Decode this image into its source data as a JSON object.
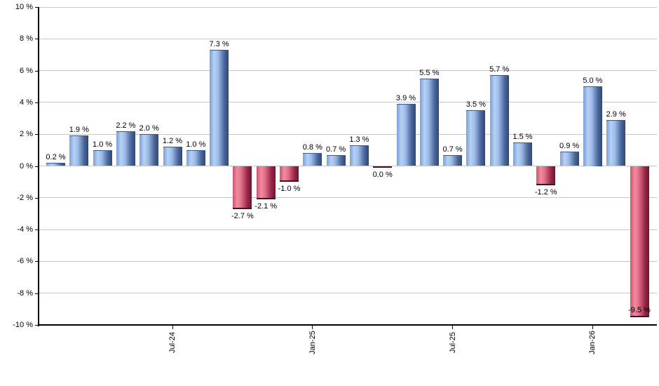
{
  "chart_data": {
    "type": "bar",
    "title": "",
    "ylabel": "",
    "xlabel": "",
    "ylim": [
      -10,
      10
    ],
    "y_tick_step": 2,
    "grid": true,
    "values": [
      0.2,
      1.9,
      1.0,
      2.2,
      2.0,
      1.2,
      1.0,
      7.3,
      -2.7,
      -2.1,
      -1.0,
      0.8,
      0.7,
      1.3,
      0.0,
      3.9,
      5.5,
      0.7,
      3.5,
      5.7,
      1.5,
      -1.2,
      0.9,
      5.0,
      2.9,
      -9.5
    ],
    "bar_value_labels": [
      "0.2 %",
      "1.9 %",
      "1.0 %",
      "2.2 %",
      "2.0 %",
      "1.2 %",
      "1.0 %",
      "7.3 %",
      "-2.7 %",
      "-2.1 %",
      "-1.0 %",
      "0.8 %",
      "0.7 %",
      "1.3 %",
      "0.0 %",
      "3.9 %",
      "5.5 %",
      "0.7 %",
      "3.5 %",
      "5.7 %",
      "1.5 %",
      "-1.2 %",
      "0.9 %",
      "5.0 %",
      "2.9 %",
      "-9.5 %"
    ],
    "y_tick_labels": [
      "10 %",
      "8 %",
      "6 %",
      "4 %",
      "2 %",
      "0 %",
      "-2 %",
      "-4 %",
      "-6 %",
      "-8 %",
      "-10 %"
    ],
    "x_tick_labels": [
      {
        "bar_index": 5,
        "label": "Jul-24"
      },
      {
        "bar_index": 11,
        "label": "Jan-25"
      },
      {
        "bar_index": 17,
        "label": "Jul-25"
      },
      {
        "bar_index": 23,
        "label": "Jan-26"
      }
    ],
    "colors": {
      "positive_gradient": [
        "#7b9fd6",
        "#b7d1f5",
        "#9dbbe8",
        "#49659a",
        "#2f4877"
      ],
      "positive_border": "#3c5a94",
      "negative_gradient": [
        "#d1516d",
        "#f18ba0",
        "#e06e86",
        "#96264a",
        "#6e1630"
      ],
      "negative_border": "#4a0d24",
      "gridline": "#c6c6c6",
      "axis": "#000000",
      "text": "#000000",
      "background": "#ffffff"
    }
  }
}
